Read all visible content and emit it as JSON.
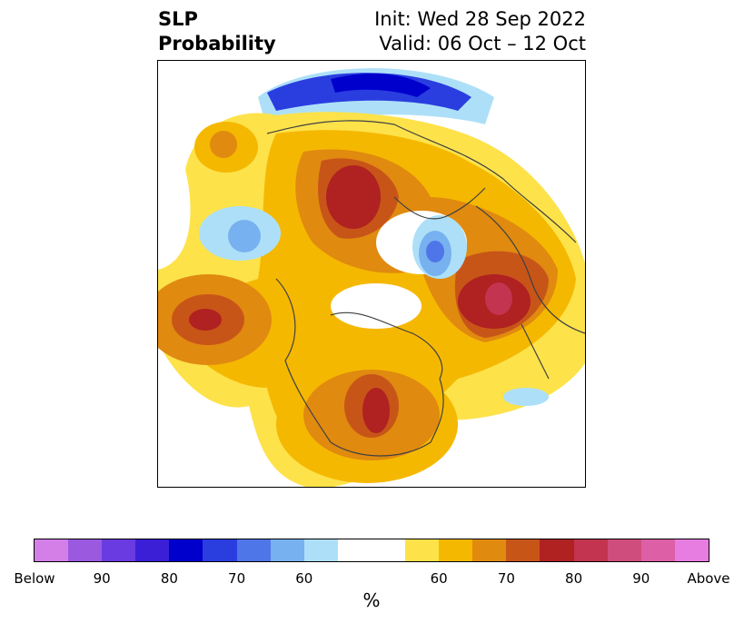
{
  "header": {
    "title_line1": "SLP",
    "title_line2": "Probability",
    "init": "Init: Wed 28 Sep 2022",
    "valid": "Valid: 06 Oct – 12 Oct"
  },
  "colorbar": {
    "colors": [
      "#d47ee8",
      "#9b59e0",
      "#6a3be0",
      "#3a1fd6",
      "#0000cc",
      "#2a3ee0",
      "#4f76e8",
      "#78b1f0",
      "#ade0f8",
      "#ffffff",
      "#ffffff",
      "#fde24a",
      "#f5b800",
      "#e08a10",
      "#c85518",
      "#b02121",
      "#c2344f",
      "#cf4d7d",
      "#dd5fa6",
      "#e77de0"
    ],
    "tick_labels": [
      "Below",
      "90",
      "80",
      "70",
      "60",
      "60",
      "70",
      "80",
      "90",
      "Above"
    ],
    "unit": "%"
  }
}
